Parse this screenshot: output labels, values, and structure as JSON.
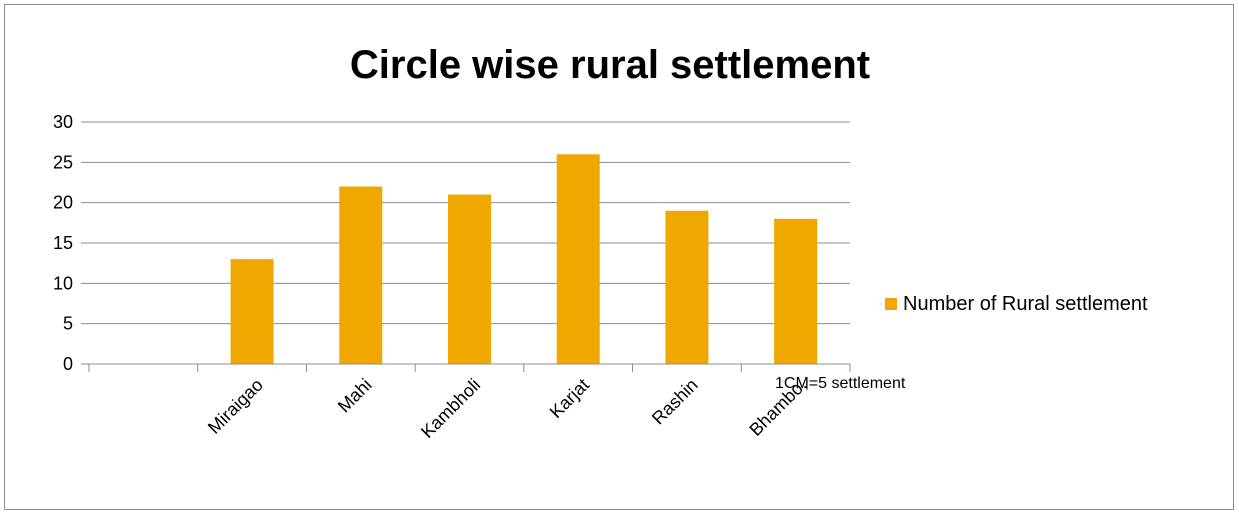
{
  "chart_data": {
    "type": "bar",
    "title": "Circle wise rural settlement",
    "categories": [
      "",
      "Miraigao",
      "Mahi",
      "Kambholi",
      "Karjat",
      "Rashin",
      "Bhambo,"
    ],
    "series": [
      {
        "name": "Number of Rural settlement",
        "values": [
          0,
          13,
          22,
          21,
          26,
          19,
          18
        ],
        "color": "#f0a800"
      }
    ],
    "ylim": [
      0,
      30
    ],
    "yticks": [
      0,
      5,
      10,
      15,
      20,
      25,
      30
    ],
    "grid": true,
    "legend_position": "right",
    "annotation": "1CM=5 settlement"
  }
}
